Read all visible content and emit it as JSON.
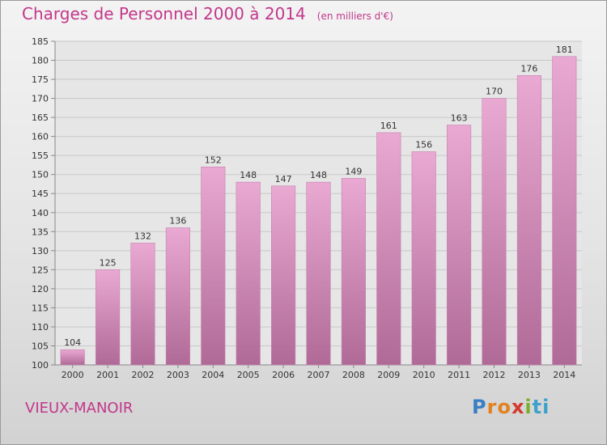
{
  "header": {
    "title": "Charges de Personnel 2000 à 2014",
    "subtitle": "(en milliers d'€)"
  },
  "footer": {
    "location": "VIEUX-MANOIR",
    "brand_letters": [
      "P",
      "r",
      "o",
      "x",
      "i",
      "ti"
    ]
  },
  "colors": {
    "title": "#c2378a",
    "bar_top": "#e9a9d2",
    "bar_bottom": "#b06a97",
    "grid": "#c8c8c8"
  },
  "chart_data": {
    "type": "bar",
    "title": "Charges de Personnel 2000 à 2014",
    "subtitle": "(en milliers d'€)",
    "categories": [
      "2000",
      "2001",
      "2002",
      "2003",
      "2004",
      "2005",
      "2006",
      "2007",
      "2008",
      "2009",
      "2010",
      "2011",
      "2012",
      "2013",
      "2014"
    ],
    "values": [
      104,
      125,
      132,
      136,
      152,
      148,
      147,
      148,
      149,
      161,
      156,
      163,
      170,
      176,
      181
    ],
    "ylim": [
      100,
      185
    ],
    "yticks": [
      100,
      105,
      110,
      115,
      120,
      125,
      130,
      135,
      140,
      145,
      150,
      155,
      160,
      165,
      170,
      175,
      180,
      185
    ],
    "grid": true,
    "data_labels": true
  }
}
